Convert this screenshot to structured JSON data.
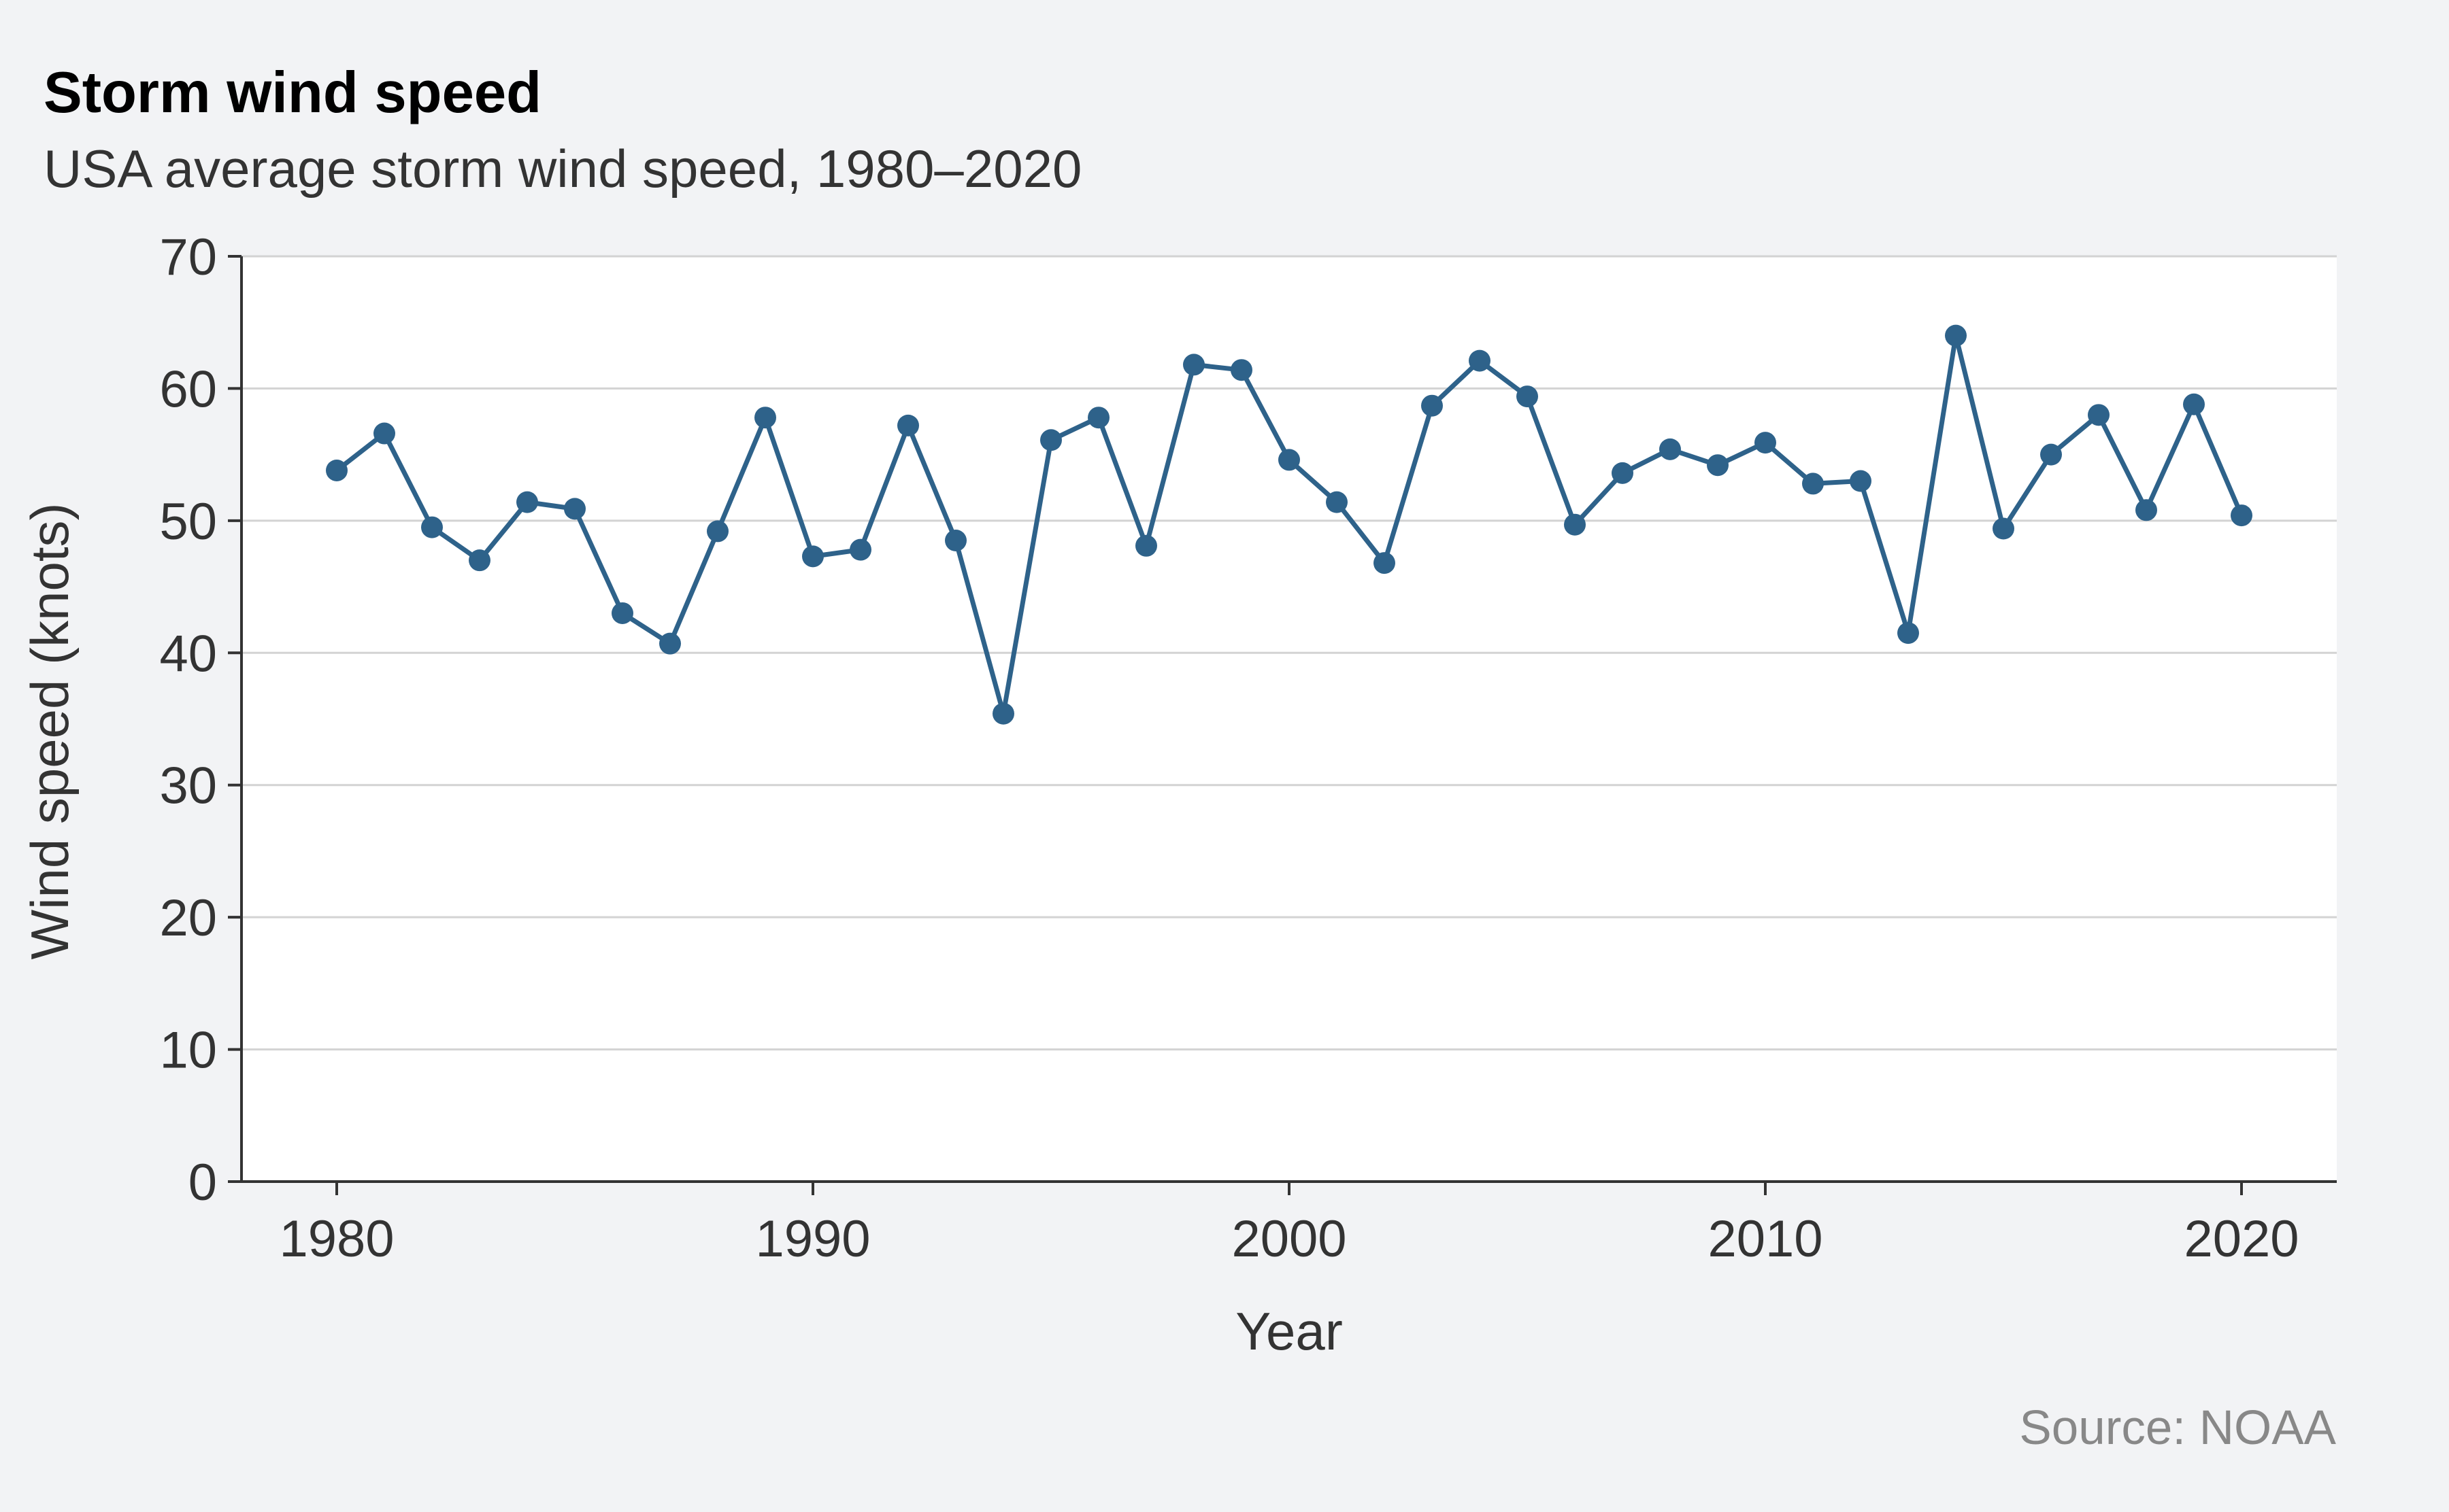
{
  "header": {
    "title": "Storm wind speed",
    "subtitle": "USA average storm wind speed, 1980–2020"
  },
  "footer": {
    "source": "Source: NOAA"
  },
  "colors": {
    "background": "#f2f3f5",
    "plot_background": "#ffffff",
    "series": "#2e628a",
    "grid": "#d3d3d3",
    "axis": "#333333"
  },
  "chart_data": {
    "type": "line",
    "title": "Storm wind speed",
    "subtitle": "USA average storm wind speed, 1980–2020",
    "xlabel": "Year",
    "ylabel": "Wind speed (knots)",
    "xlim": [
      1978,
      2022
    ],
    "ylim": [
      0,
      70
    ],
    "xticks": [
      1980,
      1990,
      2000,
      2010,
      2020
    ],
    "yticks": [
      0,
      10,
      20,
      30,
      40,
      50,
      60,
      70
    ],
    "grid": "horizontal",
    "markers": true,
    "x": [
      1980,
      1981,
      1982,
      1983,
      1984,
      1985,
      1986,
      1987,
      1988,
      1989,
      1990,
      1991,
      1992,
      1993,
      1994,
      1995,
      1996,
      1997,
      1998,
      1999,
      2000,
      2001,
      2002,
      2003,
      2004,
      2005,
      2006,
      2007,
      2008,
      2009,
      2010,
      2011,
      2012,
      2013,
      2014,
      2015,
      2016,
      2017,
      2018,
      2019,
      2020
    ],
    "series": [
      {
        "values": [
          53.8,
          56.6,
          49.5,
          47.0,
          51.4,
          50.9,
          43.0,
          40.7,
          49.2,
          57.8,
          47.3,
          47.8,
          57.2,
          48.5,
          35.4,
          56.1,
          57.8,
          48.1,
          61.8,
          61.4,
          54.6,
          51.4,
          46.8,
          58.7,
          62.1,
          59.4,
          49.7,
          53.6,
          55.4,
          54.2,
          55.9,
          52.8,
          53.0,
          41.5,
          64.0,
          49.4,
          55.0,
          58.0,
          50.8,
          58.8,
          50.4
        ]
      }
    ],
    "source": "Source: NOAA"
  }
}
